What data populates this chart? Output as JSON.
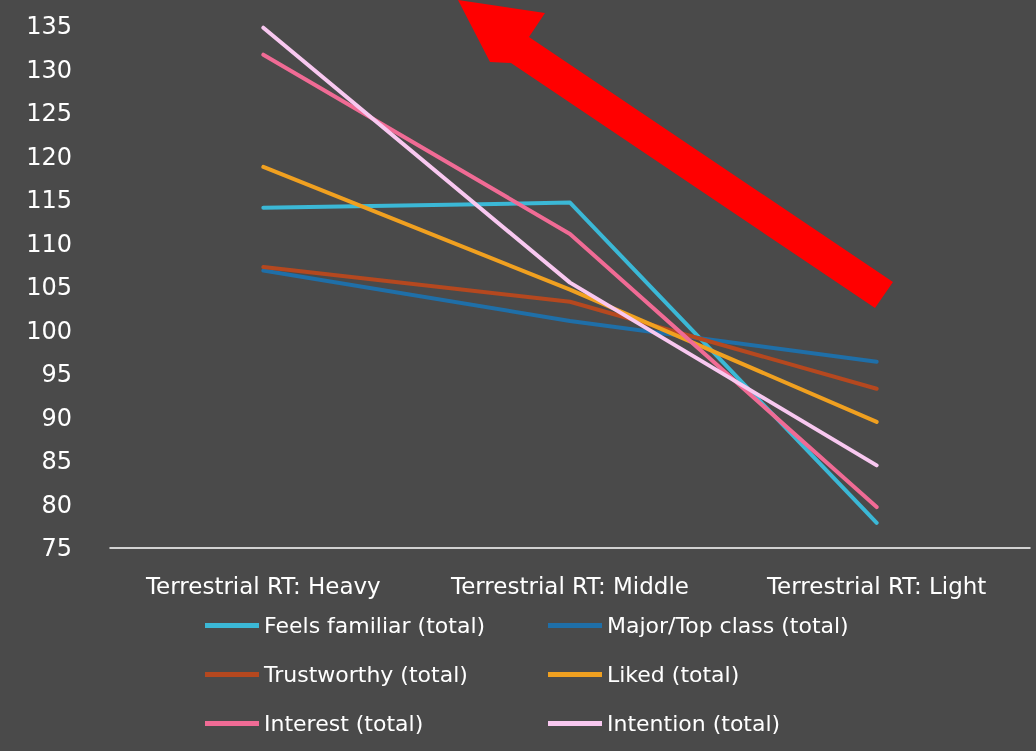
{
  "chart_data": {
    "type": "line",
    "categories": [
      "Terrestrial RT: Heavy",
      "Terrestrial RT: Middle",
      "Terrestrial RT: Light"
    ],
    "series": [
      {
        "name": "Feels familiar (total)",
        "color": "#3bb8d6",
        "values": [
          114.1,
          114.7,
          77.9
        ]
      },
      {
        "name": "Major/Top class (total)",
        "color": "#1f6fa8",
        "values": [
          106.9,
          101.1,
          96.4
        ]
      },
      {
        "name": "Trustworthy (total)",
        "color": "#b5481f",
        "values": [
          107.3,
          103.3,
          93.3
        ]
      },
      {
        "name": "Liked (total)",
        "color": "#f0a020",
        "values": [
          118.8,
          104.7,
          89.5
        ]
      },
      {
        "name": "Interest (total)",
        "color": "#f06b95",
        "values": [
          131.7,
          111.1,
          79.7
        ]
      },
      {
        "name": "Intention (total)",
        "color": "#f8c8f0",
        "values": [
          134.8,
          105.5,
          84.5
        ]
      }
    ],
    "ylim": [
      75,
      135
    ],
    "yticks": [
      75,
      80,
      85,
      90,
      95,
      100,
      105,
      110,
      115,
      120,
      125,
      130,
      135
    ],
    "grid": false,
    "legend": "bottom",
    "marker": "none",
    "line_style": "solid"
  }
}
